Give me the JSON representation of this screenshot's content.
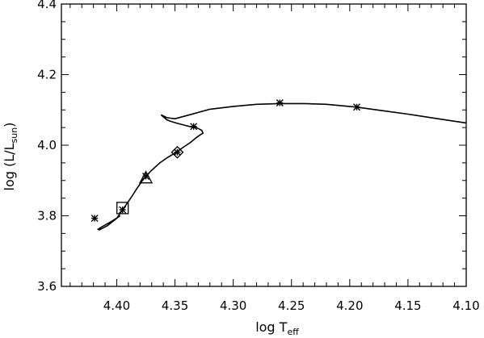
{
  "chart_data": {
    "type": "line",
    "title": "",
    "xlabel": {
      "main": "log T",
      "sub": "eff"
    },
    "ylabel": {
      "main": "log (L/L",
      "sub": "sun",
      "tail": ")"
    },
    "xlim": [
      4.4475,
      4.1
    ],
    "ylim": [
      3.6,
      4.4
    ],
    "x_reversed": true,
    "xticks": [
      4.4,
      4.35,
      4.3,
      4.25,
      4.2,
      4.15,
      4.1
    ],
    "xtick_labels": [
      "4.40",
      "4.35",
      "4.30",
      "4.25",
      "4.20",
      "4.15",
      "4.10"
    ],
    "yticks": [
      3.6,
      3.8,
      4.0,
      4.2,
      4.4
    ],
    "ytick_labels": [
      "3.6",
      "3.8",
      "4.0",
      "4.2",
      "4.4"
    ],
    "grid": false,
    "track": {
      "x": [
        4.397,
        4.404,
        4.412,
        4.416,
        4.415,
        4.408,
        4.4,
        4.395,
        4.391,
        4.387,
        4.383,
        4.378,
        4.371,
        4.363,
        4.356,
        4.349,
        4.343,
        4.337,
        4.333,
        4.329,
        4.326,
        4.327,
        4.331,
        4.336,
        4.341,
        4.348,
        4.354,
        4.357,
        4.362,
        4.357,
        4.35,
        4.34,
        4.32,
        4.3,
        4.28,
        4.26,
        4.24,
        4.22,
        4.194,
        4.17,
        4.15,
        4.13,
        4.11,
        4.1
      ],
      "y": [
        3.8,
        3.785,
        3.77,
        3.762,
        3.76,
        3.772,
        3.793,
        3.817,
        3.836,
        3.855,
        3.876,
        3.9,
        3.926,
        3.95,
        3.966,
        3.98,
        3.994,
        4.007,
        4.018,
        4.028,
        4.034,
        4.042,
        4.049,
        4.052,
        4.056,
        4.062,
        4.068,
        4.072,
        4.086,
        4.078,
        4.075,
        4.084,
        4.102,
        4.11,
        4.116,
        4.118,
        4.118,
        4.116,
        4.108,
        4.097,
        4.088,
        4.078,
        4.068,
        4.063
      ]
    },
    "star_markers": [
      {
        "x": 4.419,
        "y": 3.793
      },
      {
        "x": 4.395,
        "y": 3.817
      },
      {
        "x": 4.375,
        "y": 3.912
      },
      {
        "x": 4.348,
        "y": 3.98
      },
      {
        "x": 4.334,
        "y": 4.053
      },
      {
        "x": 4.26,
        "y": 4.12
      },
      {
        "x": 4.194,
        "y": 4.108
      }
    ],
    "square_marker": {
      "x": 4.395,
      "y": 3.822
    },
    "triangle_marker": {
      "x": 4.375,
      "y": 3.907
    },
    "diamond_marker": {
      "x": 4.348,
      "y": 3.98
    }
  }
}
